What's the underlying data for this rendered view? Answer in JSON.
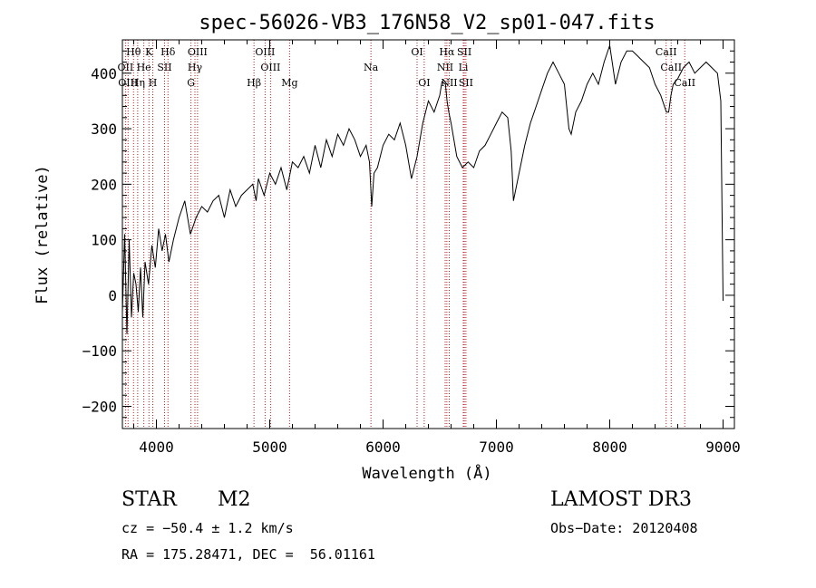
{
  "chart_data": {
    "type": "line",
    "title": "spec-56026-VB3_176N58_V2_sp01-047.fits",
    "xlabel": "Wavelength (Å)",
    "ylabel": "Flux (relative)",
    "xlim": [
      3700,
      9100
    ],
    "ylim": [
      -240,
      460
    ],
    "xticks": [
      {
        "value": 4000,
        "label": "4000"
      },
      {
        "value": 5000,
        "label": "5000"
      },
      {
        "value": 6000,
        "label": "6000"
      },
      {
        "value": 7000,
        "label": "7000"
      },
      {
        "value": 8000,
        "label": "8000"
      },
      {
        "value": 9000,
        "label": "9000"
      }
    ],
    "yticks": [
      {
        "value": -200,
        "label": "−200"
      },
      {
        "value": -100,
        "label": "−100"
      },
      {
        "value": 0,
        "label": "0"
      },
      {
        "value": 100,
        "label": "100"
      },
      {
        "value": 200,
        "label": "200"
      },
      {
        "value": 300,
        "label": "300"
      },
      {
        "value": 400,
        "label": "400"
      }
    ],
    "series": [
      {
        "name": "flux",
        "x": [
          3700,
          3720,
          3740,
          3760,
          3780,
          3800,
          3820,
          3840,
          3860,
          3880,
          3900,
          3930,
          3960,
          3990,
          4020,
          4050,
          4080,
          4110,
          4150,
          4200,
          4250,
          4300,
          4350,
          4400,
          4450,
          4500,
          4550,
          4600,
          4650,
          4700,
          4750,
          4800,
          4850,
          4880,
          4900,
          4950,
          5000,
          5050,
          5100,
          5150,
          5200,
          5250,
          5300,
          5350,
          5400,
          5450,
          5500,
          5550,
          5600,
          5650,
          5700,
          5750,
          5800,
          5850,
          5880,
          5900,
          5920,
          5950,
          6000,
          6050,
          6100,
          6150,
          6200,
          6250,
          6300,
          6350,
          6400,
          6450,
          6500,
          6520,
          6550,
          6565,
          6580,
          6600,
          6650,
          6700,
          6750,
          6800,
          6850,
          6900,
          6950,
          7000,
          7050,
          7100,
          7130,
          7150,
          7200,
          7250,
          7300,
          7350,
          7400,
          7450,
          7500,
          7550,
          7600,
          7640,
          7660,
          7700,
          7750,
          7800,
          7850,
          7900,
          7950,
          8000,
          8050,
          8100,
          8150,
          8200,
          8250,
          8300,
          8350,
          8400,
          8450,
          8500,
          8520,
          8540,
          8560,
          8600,
          8650,
          8700,
          8750,
          8800,
          8850,
          8900,
          8950,
          8980,
          9000
        ],
        "y": [
          -30,
          110,
          -70,
          100,
          -40,
          40,
          20,
          -30,
          50,
          -40,
          60,
          20,
          90,
          50,
          120,
          80,
          110,
          60,
          100,
          140,
          170,
          110,
          140,
          160,
          150,
          170,
          180,
          140,
          190,
          160,
          180,
          190,
          200,
          170,
          210,
          180,
          220,
          200,
          230,
          190,
          240,
          230,
          250,
          220,
          270,
          230,
          280,
          250,
          290,
          270,
          300,
          280,
          250,
          270,
          240,
          160,
          220,
          230,
          270,
          290,
          280,
          310,
          270,
          210,
          250,
          310,
          350,
          330,
          360,
          385,
          380,
          350,
          330,
          310,
          250,
          230,
          240,
          230,
          260,
          270,
          290,
          310,
          330,
          320,
          260,
          170,
          220,
          270,
          310,
          340,
          370,
          400,
          420,
          400,
          380,
          300,
          290,
          330,
          350,
          380,
          400,
          380,
          420,
          450,
          380,
          420,
          440,
          440,
          430,
          420,
          410,
          380,
          360,
          330,
          330,
          360,
          380,
          390,
          410,
          420,
          400,
          410,
          420,
          410,
          400,
          350,
          -10
        ]
      }
    ],
    "line_markers": [
      {
        "name": "Hθ",
        "wavelength": 3798,
        "row": 0
      },
      {
        "name": "K",
        "wavelength": 3934,
        "row": 0
      },
      {
        "name": "Hδ",
        "wavelength": 4102,
        "row": 0
      },
      {
        "name": "OIII",
        "wavelength": 4363,
        "row": 0
      },
      {
        "name": "OIII",
        "wavelength": 4959,
        "row": 0
      },
      {
        "name": "OI",
        "wavelength": 6300,
        "row": 0
      },
      {
        "name": "Hα",
        "wavelength": 6563,
        "row": 0
      },
      {
        "name": "SII",
        "wavelength": 6717,
        "row": 0
      },
      {
        "name": "CaII",
        "wavelength": 8498,
        "row": 0
      },
      {
        "name": "OII",
        "wavelength": 3727,
        "row": 1
      },
      {
        "name": "He",
        "wavelength": 3889,
        "row": 1
      },
      {
        "name": "SII",
        "wavelength": 4072,
        "row": 1
      },
      {
        "name": "Hγ",
        "wavelength": 4340,
        "row": 1
      },
      {
        "name": "OIII",
        "wavelength": 5007,
        "row": 1
      },
      {
        "name": "Na",
        "wavelength": 5893,
        "row": 1
      },
      {
        "name": "NII",
        "wavelength": 6548,
        "row": 1
      },
      {
        "name": "Li",
        "wavelength": 6708,
        "row": 1
      },
      {
        "name": "CaII",
        "wavelength": 8542,
        "row": 1
      },
      {
        "name": "OIII",
        "wavelength": 3750,
        "row": 2
      },
      {
        "name": "Hη",
        "wavelength": 3835,
        "row": 2
      },
      {
        "name": "H",
        "wavelength": 3968,
        "row": 2
      },
      {
        "name": "G",
        "wavelength": 4305,
        "row": 2
      },
      {
        "name": "Hβ",
        "wavelength": 4861,
        "row": 2
      },
      {
        "name": "Mg",
        "wavelength": 5175,
        "row": 2
      },
      {
        "name": "OI",
        "wavelength": 6363,
        "row": 2
      },
      {
        "name": "NII",
        "wavelength": 6584,
        "row": 2
      },
      {
        "name": "SII",
        "wavelength": 6731,
        "row": 2
      },
      {
        "name": "CaII",
        "wavelength": 8662,
        "row": 2
      }
    ],
    "colors": {
      "line": "#000000",
      "marker": "#b22222",
      "axis": "#000000"
    }
  },
  "info": {
    "object_class": "STAR",
    "subclass": "M2",
    "survey": "LAMOST DR3",
    "redshift": "cz = −50.4 ± 1.2 km/s",
    "obs_date": "Obs−Date: 20120408",
    "coords": "RA = 175.28471, DEC =  56.01161"
  }
}
